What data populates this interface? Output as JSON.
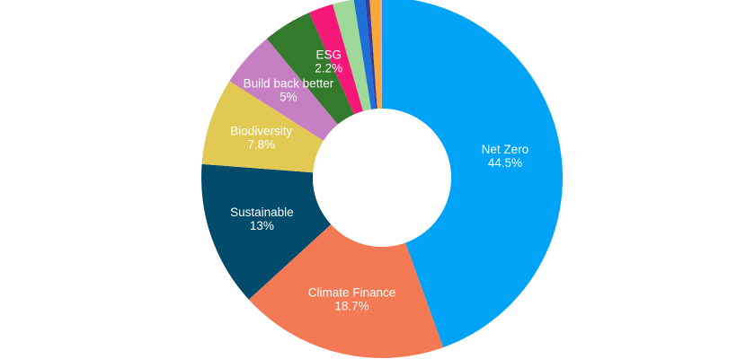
{
  "chart_data": {
    "type": "pie",
    "title": "",
    "slices": [
      {
        "label": "Net Zero",
        "value_label": "44.5%",
        "value": 44.5,
        "color": "#00a3f5",
        "labeled": true
      },
      {
        "label": "Climate Finance",
        "value_label": "18.7%",
        "value": 18.7,
        "color": "#f47a55",
        "labeled": true
      },
      {
        "label": "Sustainable",
        "value_label": "13%",
        "value": 13.0,
        "color": "#004a6b",
        "labeled": true
      },
      {
        "label": "Biodiversity",
        "value_label": "7.8%",
        "value": 7.8,
        "color": "#e2c953",
        "labeled": true
      },
      {
        "label": "Build back better",
        "value_label": "5%",
        "value": 5.0,
        "color": "#c77fc4",
        "labeled": true
      },
      {
        "label": "",
        "value_label": "",
        "value": 4.4,
        "color": "#347a2c",
        "labeled": false
      },
      {
        "label": "ESG",
        "value_label": "2.2%",
        "value": 2.2,
        "color": "#f61879",
        "labeled": true
      },
      {
        "label": "",
        "value_label": "",
        "value": 1.9,
        "color": "#9fd99a",
        "labeled": false
      },
      {
        "label": "",
        "value_label": "",
        "value": 1.0,
        "color": "#1f6fd8",
        "labeled": false
      },
      {
        "label": "",
        "value_label": "",
        "value": 0.4,
        "color": "#3b3d9e",
        "labeled": false
      },
      {
        "label": "",
        "value_label": "",
        "value": 1.0,
        "color": "#f8a93a",
        "labeled": false
      },
      {
        "label": "",
        "value_label": "",
        "value": 0.1,
        "color": "#b8b1ee",
        "labeled": false
      }
    ]
  }
}
